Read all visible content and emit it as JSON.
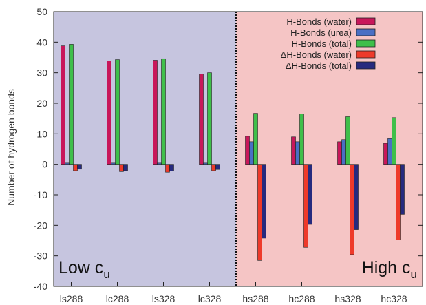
{
  "chart_data": {
    "type": "bar",
    "ylabel": "Number of hydrogen bonds",
    "ylim": [
      -40,
      50
    ],
    "yticks": [
      -40,
      -30,
      -20,
      -10,
      0,
      10,
      20,
      30,
      40,
      50
    ],
    "categories": [
      "ls288",
      "lc288",
      "ls328",
      "lc328",
      "hs288",
      "hc288",
      "hs328",
      "hc328"
    ],
    "series": [
      {
        "name": "H-Bonds (water)",
        "color": "#c8175a",
        "values": [
          38.8,
          33.9,
          34.1,
          29.6,
          9.2,
          9.0,
          7.4,
          6.9
        ]
      },
      {
        "name": "H-Bonds (urea)",
        "color": "#4a6fc4",
        "values": [
          0.4,
          0.4,
          0.4,
          0.4,
          7.4,
          7.4,
          8.1,
          8.4
        ]
      },
      {
        "name": "H-Bonds (total)",
        "color": "#3fbf4a",
        "values": [
          39.3,
          34.3,
          34.6,
          30.0,
          16.7,
          16.5,
          15.6,
          15.3
        ]
      },
      {
        "name": "ΔH-Bonds (water)",
        "color": "#ee3a2a",
        "values": [
          -2.1,
          -2.4,
          -2.6,
          -2.1,
          -31.5,
          -27.2,
          -29.6,
          -24.8
        ]
      },
      {
        "name": "ΔH-Bonds (total)",
        "color": "#262a7e",
        "values": [
          -1.6,
          -2.1,
          -2.2,
          -1.7,
          -24.2,
          -19.7,
          -21.4,
          -16.4
        ]
      }
    ],
    "regions": [
      {
        "label": "Low c",
        "sub": "u",
        "color": "#c6c5df",
        "from": 0,
        "to": 3
      },
      {
        "label": "High c",
        "sub": "u",
        "color": "#f5c5c5",
        "from": 4,
        "to": 7
      }
    ],
    "legend_position": "top-right",
    "grid": false
  }
}
